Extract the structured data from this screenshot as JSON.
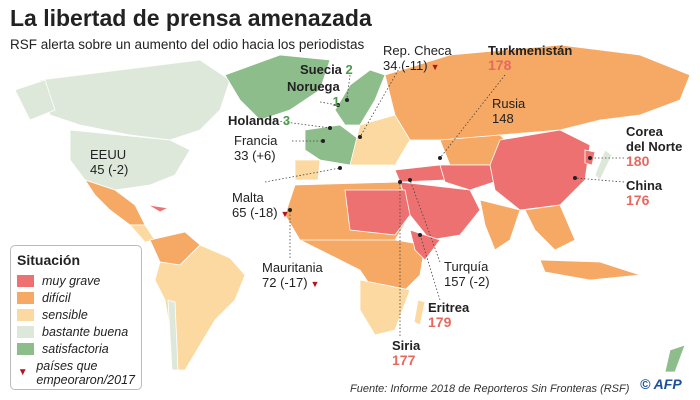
{
  "title": "La libertad de prensa amenazada",
  "subtitle": "RSF alerta sobre un aumento del odio hacia los periodistas",
  "colors": {
    "muy_grave": "#ee7171",
    "dificil": "#f5a964",
    "sensible": "#fcd9a1",
    "bastante_buena": "#dde8db",
    "satisfactoria": "#8dbd8b",
    "worsened": "#b5121b"
  },
  "legend": {
    "title": "Situación",
    "items": [
      {
        "label": "muy grave",
        "color": "#ee7171"
      },
      {
        "label": "difícil",
        "color": "#f5a964"
      },
      {
        "label": "sensible",
        "color": "#fcd9a1"
      },
      {
        "label": "bastante buena",
        "color": "#dde8db"
      },
      {
        "label": "satisfactoria",
        "color": "#8dbd8b"
      }
    ],
    "worsened_line1": "países que",
    "worsened_line2": "empeoraron/2017",
    "worsened_icon": "▼"
  },
  "countries": {
    "rep_checa": {
      "name": "Rep. Checa",
      "value": "34 (-11)"
    },
    "turkmenistan": {
      "name": "Turkmenistán",
      "value": "178"
    },
    "suecia": {
      "name": "Suecia",
      "value": "2"
    },
    "noruega": {
      "name": "Noruega",
      "value": "1"
    },
    "holanda": {
      "name": "Holanda",
      "value": "3"
    },
    "francia": {
      "name": "Francia",
      "value": "33 (+6)"
    },
    "rusia": {
      "name": "Rusia",
      "value": "148"
    },
    "eeuu": {
      "name": "EEUU",
      "value": "45 (-2)"
    },
    "corea": {
      "name1": "Corea",
      "name2": "del Norte",
      "value": "180"
    },
    "china": {
      "name": "China",
      "value": "176"
    },
    "malta": {
      "name": "Malta",
      "value": "65 (-18)"
    },
    "mauritania": {
      "name": "Mauritania",
      "value": "72 (-17)"
    },
    "turquia": {
      "name": "Turquía",
      "value": "157 (-2)"
    },
    "eritrea": {
      "name": "Eritrea",
      "value": "179"
    },
    "siria": {
      "name": "Siria",
      "value": "177"
    }
  },
  "source": "Fuente: Informe 2018 de Reporteros Sin Fronteras (RSF)",
  "credit": "© AFP"
}
